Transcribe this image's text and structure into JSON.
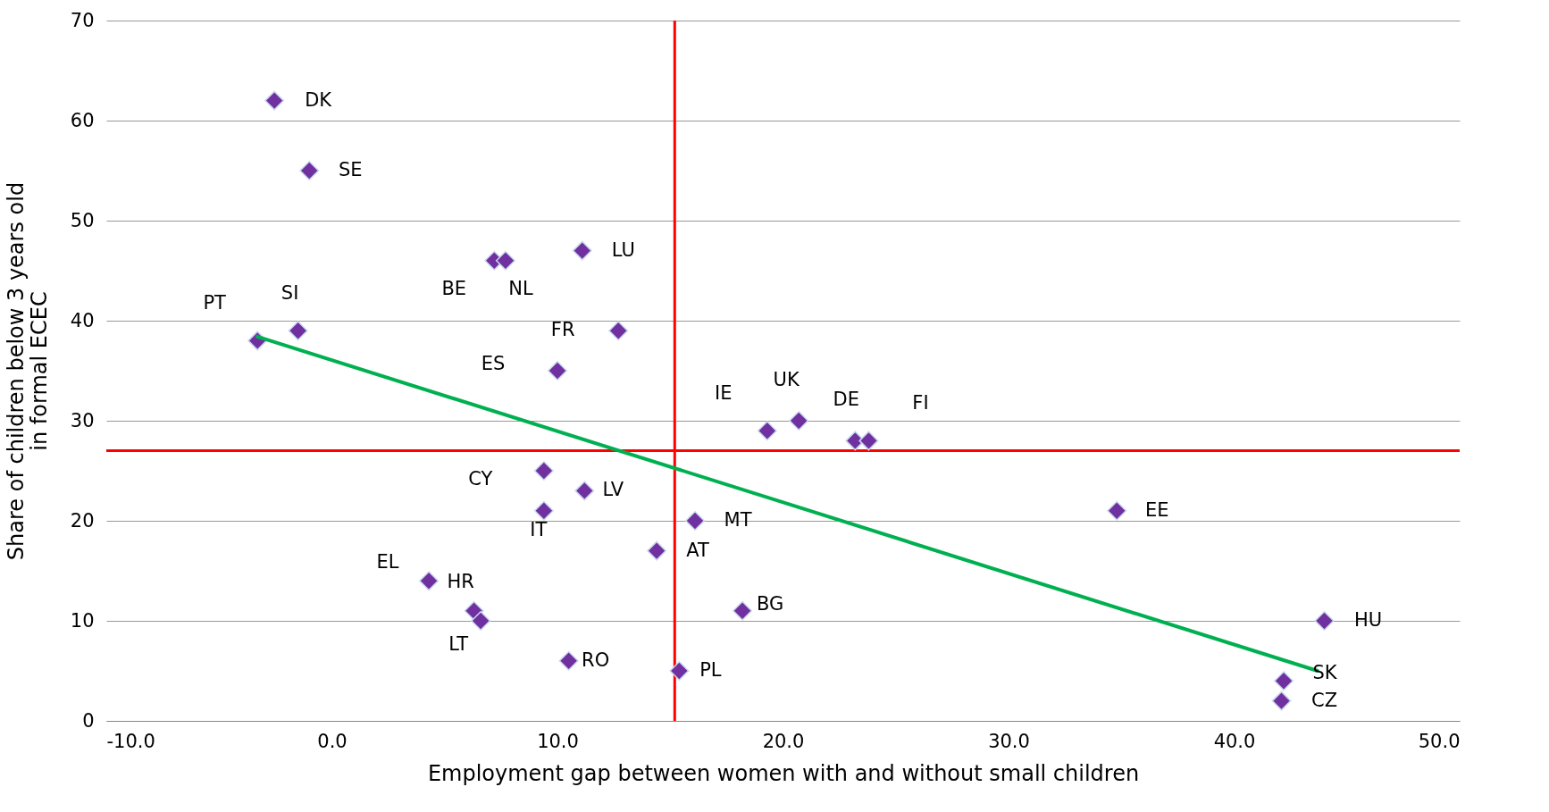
{
  "chart_data": {
    "type": "scatter",
    "xlabel": "Employment gap between women with and without small children",
    "ylabel": "Share of children below 3 years old in formal ECEC",
    "xlim": [
      -10,
      50
    ],
    "ylim": [
      0,
      70
    ],
    "xticks": [
      {
        "value": -10,
        "label": "-10.0"
      },
      {
        "value": 0,
        "label": "0.0"
      },
      {
        "value": 10,
        "label": "10.0"
      },
      {
        "value": 20,
        "label": "20.0"
      },
      {
        "value": 30,
        "label": "30.0"
      },
      {
        "value": 40,
        "label": "40.0"
      },
      {
        "value": 50,
        "label": "50.0"
      }
    ],
    "yticks": [
      0,
      10,
      20,
      30,
      40,
      50,
      60,
      70
    ],
    "grid": "y",
    "marker": "diamond",
    "series": [
      {
        "color": "#7030a0",
        "x": [
          -2.55,
          -1.0,
          7.2,
          7.7,
          11.1,
          -3.3,
          -1.5,
          12.7,
          10.0,
          19.3,
          20.7,
          23.2,
          23.8,
          9.4,
          11.2,
          9.4,
          16.1,
          34.8,
          14.4,
          4.3,
          6.3,
          6.6,
          10.5,
          15.4,
          18.2,
          44.0,
          42.2,
          42.1
        ],
        "values": [
          62,
          55,
          46,
          46,
          47,
          38,
          39,
          39,
          35,
          29,
          30,
          28,
          28,
          25,
          23,
          21,
          20,
          21,
          17,
          14,
          11,
          10,
          6,
          5,
          11,
          10,
          4,
          2
        ]
      },
      {
        "type": "line",
        "marker": "none",
        "color": "#00b050",
        "x": [
          -3.3,
          43.7
        ],
        "values": [
          38.4,
          5.0
        ]
      }
    ],
    "ref_lines": [
      {
        "axis": "x",
        "value": 15.2,
        "color": "#ff0000"
      },
      {
        "axis": "y",
        "value": 27,
        "color": "#ff0000"
      }
    ],
    "annotations": [
      {
        "text": "DK",
        "x": -2.55,
        "y": 62
      },
      {
        "text": "SE",
        "x": -1.0,
        "y": 55
      },
      {
        "text": "BE",
        "x": 7.2,
        "y": 46
      },
      {
        "text": "NL",
        "x": 7.7,
        "y": 46
      },
      {
        "text": "LU",
        "x": 11.1,
        "y": 47
      },
      {
        "text": "PT",
        "x": -3.3,
        "y": 38
      },
      {
        "text": "SI",
        "x": -1.5,
        "y": 39
      },
      {
        "text": "FR",
        "x": 12.7,
        "y": 39
      },
      {
        "text": "ES",
        "x": 10.0,
        "y": 35
      },
      {
        "text": "IE",
        "x": 19.3,
        "y": 29
      },
      {
        "text": "UK",
        "x": 20.7,
        "y": 30
      },
      {
        "text": "DE",
        "x": 23.2,
        "y": 28
      },
      {
        "text": "FI",
        "x": 23.8,
        "y": 28
      },
      {
        "text": "CY",
        "x": 9.4,
        "y": 25
      },
      {
        "text": "LV",
        "x": 11.2,
        "y": 23
      },
      {
        "text": "IT",
        "x": 9.4,
        "y": 21
      },
      {
        "text": "MT",
        "x": 16.1,
        "y": 20
      },
      {
        "text": "EE",
        "x": 34.8,
        "y": 21
      },
      {
        "text": "AT",
        "x": 14.4,
        "y": 17
      },
      {
        "text": "EL",
        "x": 4.3,
        "y": 14
      },
      {
        "text": "HR",
        "x": 6.3,
        "y": 11
      },
      {
        "text": "LT",
        "x": 6.6,
        "y": 10
      },
      {
        "text": "RO",
        "x": 10.5,
        "y": 6
      },
      {
        "text": "PL",
        "x": 15.4,
        "y": 5
      },
      {
        "text": "BG",
        "x": 18.2,
        "y": 11
      },
      {
        "text": "HU",
        "x": 44.0,
        "y": 10
      },
      {
        "text": "SK",
        "x": 42.2,
        "y": 4
      },
      {
        "text": "CZ",
        "x": 42.1,
        "y": 2
      }
    ]
  }
}
